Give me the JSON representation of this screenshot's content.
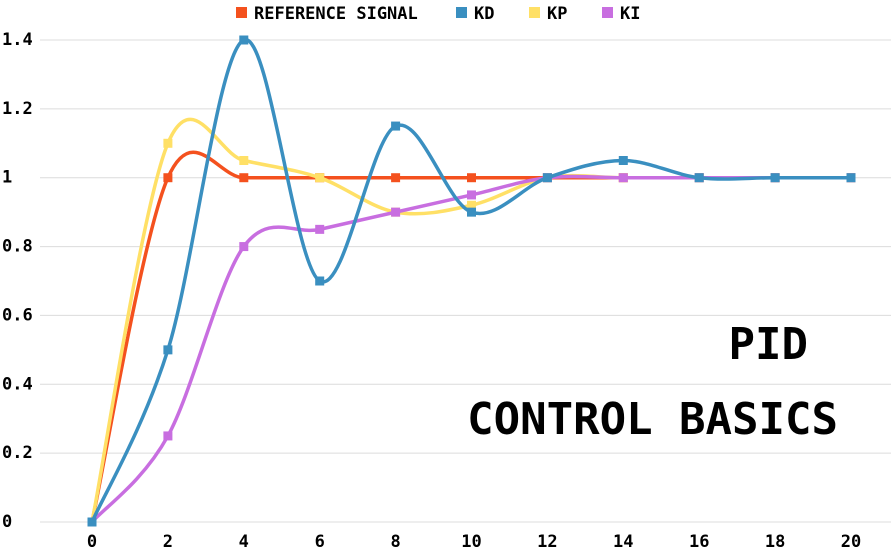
{
  "chart_data": {
    "type": "line",
    "x": [
      0,
      2,
      4,
      6,
      8,
      10,
      12,
      14,
      16,
      18,
      20
    ],
    "series": [
      {
        "name": "REFERENCE SIGNAL",
        "color": "#f4511e",
        "values": [
          0,
          1,
          1,
          1,
          1,
          1,
          1,
          1,
          1,
          1,
          1
        ]
      },
      {
        "name": "KD",
        "color": "#3a8fc0",
        "values": [
          0,
          0.5,
          1.4,
          0.7,
          1.15,
          0.9,
          1.0,
          1.05,
          1.0,
          1.0,
          1.0
        ]
      },
      {
        "name": "KP",
        "color": "#ffe066",
        "values": [
          0,
          1.1,
          1.05,
          1.0,
          0.9,
          0.92,
          1.0,
          1.0,
          1.0,
          1.0,
          1.0
        ]
      },
      {
        "name": "KI",
        "color": "#c86ee0",
        "values": [
          0,
          0.25,
          0.8,
          0.85,
          0.9,
          0.95,
          1.0,
          1.0,
          1.0,
          1.0,
          1.0
        ]
      }
    ],
    "xlim": [
      0,
      20
    ],
    "xticks": [
      0,
      2,
      4,
      6,
      8,
      10,
      12,
      14,
      16,
      18,
      20
    ],
    "ylim": [
      0,
      1.4
    ],
    "yticks": [
      0,
      0.2,
      0.4,
      0.6,
      0.8,
      1,
      1.2,
      1.4
    ],
    "grid": true,
    "smooth": true,
    "legend": "top",
    "annotations": [
      {
        "text": "PID",
        "color": "#f4511e"
      },
      {
        "text": "CONTROL BASICS",
        "color": "#000000"
      }
    ]
  }
}
